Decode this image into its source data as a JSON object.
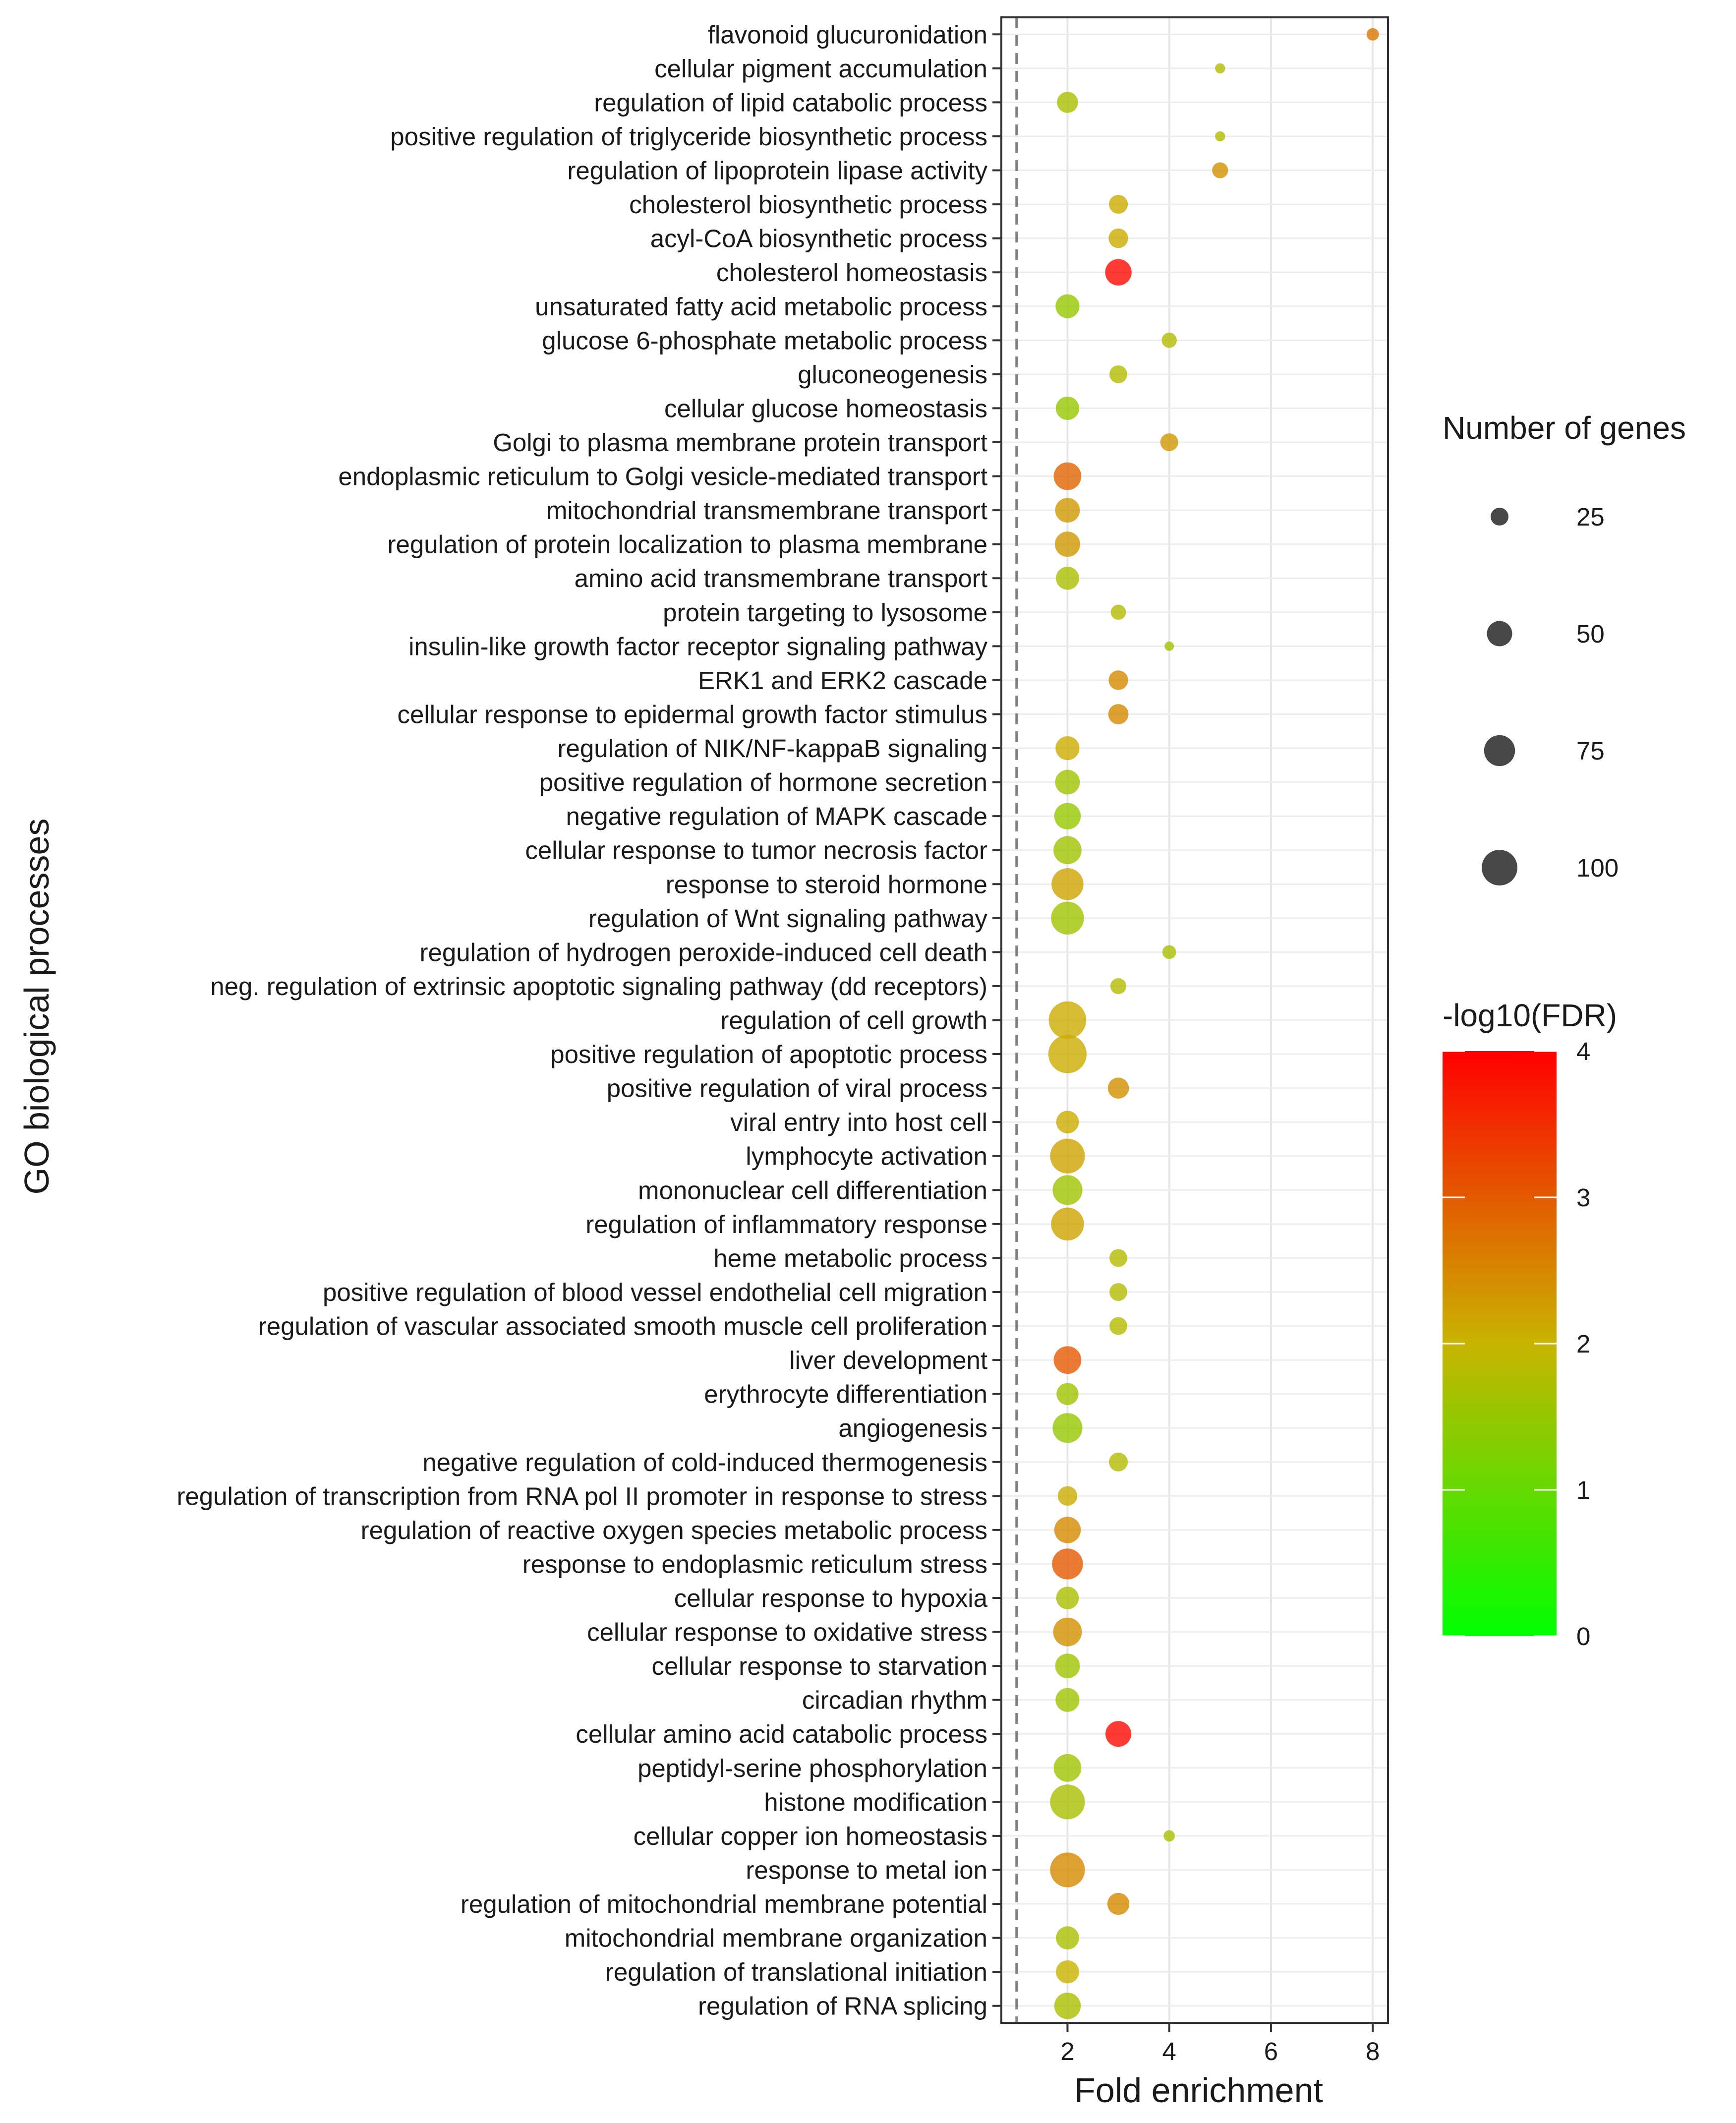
{
  "chart_data": {
    "type": "scatter",
    "subtype": "bubble",
    "xlabel": "Fold enrichment",
    "ylabel": "GO biological processes",
    "xlim": [
      0.7,
      8.3
    ],
    "x_ticks": [
      2,
      4,
      6,
      8
    ],
    "reference_line_x": 1,
    "grid": true,
    "legend_position": "right",
    "size_legend": {
      "title": "Number of genes",
      "entries": [
        {
          "label": "25",
          "value": 25
        },
        {
          "label": "50",
          "value": 50
        },
        {
          "label": "75",
          "value": 75
        },
        {
          "label": "100",
          "value": 100
        }
      ]
    },
    "color_legend": {
      "title": "-log10(FDR)",
      "min": 0,
      "max": 4,
      "ticks": [
        "0",
        "1",
        "2",
        "3",
        "4"
      ],
      "low_color": "#00ff00",
      "mid_color": "#c8b400",
      "high_color": "#ff0000"
    },
    "categories": [
      "flavonoid glucuronidation",
      "cellular pigment accumulation",
      "regulation of lipid catabolic process",
      "positive regulation of triglyceride biosynthetic process",
      "regulation of lipoprotein lipase activity",
      "cholesterol biosynthetic process",
      "acyl-CoA biosynthetic process",
      "cholesterol homeostasis",
      "unsaturated fatty acid metabolic process",
      "glucose 6-phosphate metabolic process",
      "gluconeogenesis",
      "cellular glucose homeostasis",
      "Golgi to plasma membrane protein transport",
      "endoplasmic reticulum to Golgi vesicle-mediated transport",
      "mitochondrial transmembrane transport",
      "regulation of protein localization to plasma membrane",
      "amino acid transmembrane transport",
      "protein targeting to lysosome",
      "insulin-like growth factor receptor signaling pathway",
      "ERK1 and ERK2 cascade",
      "cellular response to epidermal growth factor stimulus",
      "regulation of NIK/NF-kappaB signaling",
      "positive regulation of hormone secretion",
      "negative regulation of MAPK cascade",
      "cellular response to tumor necrosis factor",
      "response to steroid hormone",
      "regulation of Wnt signaling pathway",
      "regulation of hydrogen peroxide-induced cell death",
      "neg. regulation of extrinsic apoptotic signaling pathway (dd receptors)",
      "regulation of cell growth",
      "positive regulation of apoptotic process",
      "positive regulation of viral process",
      "viral entry into host cell",
      "lymphocyte activation",
      "mononuclear cell differentiation",
      "regulation of inflammatory response",
      "heme metabolic process",
      "positive regulation of blood vessel endothelial cell migration",
      "regulation of vascular associated smooth muscle cell proliferation",
      "liver development",
      "erythrocyte differentiation",
      "angiogenesis",
      "negative regulation of cold-induced thermogenesis",
      "regulation of transcription from RNA pol II promoter in response to stress",
      "regulation of reactive oxygen species metabolic process",
      "response to endoplasmic reticulum stress",
      "cellular response to hypoxia",
      "cellular response to oxidative stress",
      "cellular response to starvation",
      "circadian rhythm",
      "cellular amino acid catabolic process",
      "peptidyl-serine phosphorylation",
      "histone modification",
      "cellular copper ion homeostasis",
      "response to metal ion",
      "regulation of mitochondrial membrane potential",
      "mitochondrial membrane organization",
      "regulation of translational initiation",
      "regulation of RNA splicing"
    ],
    "points": [
      {
        "x": 8,
        "genes": 12,
        "neglog10fdr": 2.7
      },
      {
        "x": 5,
        "genes": 8,
        "neglog10fdr": 1.8
      },
      {
        "x": 2,
        "genes": 35,
        "neglog10fdr": 1.7
      },
      {
        "x": 5,
        "genes": 8,
        "neglog10fdr": 1.8
      },
      {
        "x": 5,
        "genes": 20,
        "neglog10fdr": 2.4
      },
      {
        "x": 3,
        "genes": 28,
        "neglog10fdr": 2.1
      },
      {
        "x": 3,
        "genes": 30,
        "neglog10fdr": 2.1
      },
      {
        "x": 3,
        "genes": 55,
        "neglog10fdr": 3.9
      },
      {
        "x": 2,
        "genes": 45,
        "neglog10fdr": 1.5
      },
      {
        "x": 4,
        "genes": 18,
        "neglog10fdr": 1.8
      },
      {
        "x": 3,
        "genes": 25,
        "neglog10fdr": 1.8
      },
      {
        "x": 2,
        "genes": 43,
        "neglog10fdr": 1.5
      },
      {
        "x": 4,
        "genes": 25,
        "neglog10fdr": 2.3
      },
      {
        "x": 2,
        "genes": 60,
        "neglog10fdr": 2.9
      },
      {
        "x": 2,
        "genes": 48,
        "neglog10fdr": 2.3
      },
      {
        "x": 2,
        "genes": 50,
        "neglog10fdr": 2.3
      },
      {
        "x": 2,
        "genes": 42,
        "neglog10fdr": 1.7
      },
      {
        "x": 3,
        "genes": 18,
        "neglog10fdr": 1.8
      },
      {
        "x": 4,
        "genes": 7,
        "neglog10fdr": 1.6
      },
      {
        "x": 3,
        "genes": 30,
        "neglog10fdr": 2.5
      },
      {
        "x": 3,
        "genes": 32,
        "neglog10fdr": 2.5
      },
      {
        "x": 2,
        "genes": 45,
        "neglog10fdr": 2.1
      },
      {
        "x": 2,
        "genes": 48,
        "neglog10fdr": 1.6
      },
      {
        "x": 2,
        "genes": 55,
        "neglog10fdr": 1.5
      },
      {
        "x": 2,
        "genes": 62,
        "neglog10fdr": 1.6
      },
      {
        "x": 2,
        "genes": 80,
        "neglog10fdr": 2.2
      },
      {
        "x": 2,
        "genes": 85,
        "neglog10fdr": 1.6
      },
      {
        "x": 4,
        "genes": 15,
        "neglog10fdr": 1.7
      },
      {
        "x": 3,
        "genes": 20,
        "neglog10fdr": 1.8
      },
      {
        "x": 2,
        "genes": 110,
        "neglog10fdr": 2.1
      },
      {
        "x": 2,
        "genes": 115,
        "neglog10fdr": 2.1
      },
      {
        "x": 3,
        "genes": 35,
        "neglog10fdr": 2.4
      },
      {
        "x": 2,
        "genes": 40,
        "neglog10fdr": 2.1
      },
      {
        "x": 2,
        "genes": 95,
        "neglog10fdr": 2.2
      },
      {
        "x": 2,
        "genes": 70,
        "neglog10fdr": 1.6
      },
      {
        "x": 2,
        "genes": 85,
        "neglog10fdr": 2.2
      },
      {
        "x": 3,
        "genes": 25,
        "neglog10fdr": 1.8
      },
      {
        "x": 3,
        "genes": 25,
        "neglog10fdr": 1.8
      },
      {
        "x": 3,
        "genes": 25,
        "neglog10fdr": 1.8
      },
      {
        "x": 2,
        "genes": 60,
        "neglog10fdr": 3.0
      },
      {
        "x": 2,
        "genes": 38,
        "neglog10fdr": 1.6
      },
      {
        "x": 2,
        "genes": 70,
        "neglog10fdr": 1.5
      },
      {
        "x": 3,
        "genes": 28,
        "neglog10fdr": 1.8
      },
      {
        "x": 2,
        "genes": 30,
        "neglog10fdr": 2.1
      },
      {
        "x": 2,
        "genes": 55,
        "neglog10fdr": 2.5
      },
      {
        "x": 2,
        "genes": 75,
        "neglog10fdr": 3.0
      },
      {
        "x": 2,
        "genes": 40,
        "neglog10fdr": 1.7
      },
      {
        "x": 2,
        "genes": 65,
        "neglog10fdr": 2.4
      },
      {
        "x": 2,
        "genes": 48,
        "neglog10fdr": 1.6
      },
      {
        "x": 2,
        "genes": 45,
        "neglog10fdr": 1.6
      },
      {
        "x": 3,
        "genes": 52,
        "neglog10fdr": 3.9
      },
      {
        "x": 2,
        "genes": 60,
        "neglog10fdr": 1.6
      },
      {
        "x": 2,
        "genes": 95,
        "neglog10fdr": 1.7
      },
      {
        "x": 4,
        "genes": 10,
        "neglog10fdr": 1.7
      },
      {
        "x": 2,
        "genes": 95,
        "neglog10fdr": 2.5
      },
      {
        "x": 3,
        "genes": 38,
        "neglog10fdr": 2.5
      },
      {
        "x": 2,
        "genes": 42,
        "neglog10fdr": 1.7
      },
      {
        "x": 2,
        "genes": 42,
        "neglog10fdr": 2.0
      },
      {
        "x": 2,
        "genes": 55,
        "neglog10fdr": 1.7
      }
    ]
  }
}
